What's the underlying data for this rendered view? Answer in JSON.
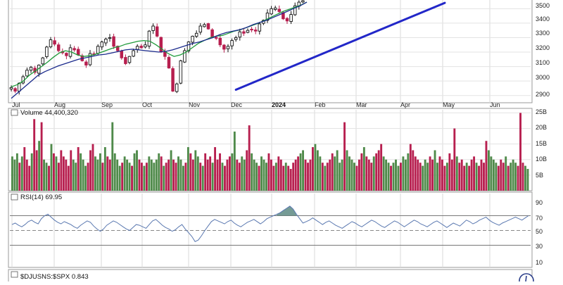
{
  "chart_data": [
    {
      "type": "candlestick",
      "panel": "price",
      "grid": true,
      "x_tick_labels": [
        "Jul",
        "Aug",
        "Sep",
        "Oct",
        "Nov",
        "Dec",
        "2024",
        "Feb",
        "Mar",
        "Apr",
        "May",
        "Jun"
      ],
      "year_label": "2024",
      "ylim": [
        2850,
        3560
      ],
      "y_ticks": [
        2900,
        3000,
        3100,
        3200,
        3300,
        3400,
        3500
      ],
      "candles_per_month": 21,
      "close": [
        2955,
        2930,
        2985,
        3030,
        3075,
        3095,
        3060,
        3110,
        3160,
        3235,
        3285,
        3255,
        3210,
        3195,
        3175,
        3230,
        3215,
        3180,
        3140,
        3110,
        3190,
        3185,
        3240,
        3270,
        3290,
        3300,
        3240,
        3210,
        3160,
        3120,
        3170,
        3210,
        3240,
        3230,
        3250,
        3345,
        3380,
        3310,
        3200,
        3170,
        3090,
        2930,
        2980,
        3140,
        3210,
        3270,
        3310,
        3330,
        3380,
        3390,
        3360,
        3300,
        3295,
        3250,
        3220,
        3240,
        3280,
        3300,
        3340,
        3330,
        3350,
        3355,
        3345,
        3395,
        3420,
        3470,
        3500,
        3505,
        3480,
        3430,
        3415,
        3460,
        3520,
        3545,
        3555
      ],
      "moving_averages": [
        {
          "name": "fast",
          "color": "#1f9a3a",
          "values": [
            2960,
            2975,
            3000,
            3040,
            3070,
            3100,
            3130,
            3165,
            3195,
            3210,
            3200,
            3180,
            3170,
            3175,
            3185,
            3200,
            3215,
            3230,
            3240,
            3255,
            3265,
            3275,
            3280,
            3275,
            3250,
            3220,
            3190,
            3170,
            3180,
            3200,
            3230,
            3260,
            3280,
            3300,
            3310,
            3315,
            3330,
            3345,
            3355,
            3370,
            3385,
            3400,
            3420,
            3440,
            3460,
            3480,
            3495,
            3510,
            3525,
            3545
          ]
        },
        {
          "name": "slow",
          "color": "#1a2a8c",
          "values": [
            2880,
            2920,
            2960,
            3000,
            3040,
            3065,
            3085,
            3105,
            3120,
            3135,
            3150,
            3160,
            3170,
            3180,
            3185,
            3195,
            3205,
            3215,
            3220,
            3215,
            3210,
            3205,
            3200,
            3205,
            3215,
            3230,
            3245,
            3260,
            3270,
            3285,
            3300,
            3320,
            3335,
            3345,
            3355,
            3370,
            3390,
            3405,
            3420,
            3440,
            3460,
            3480,
            3500,
            3520,
            3545
          ]
        }
      ],
      "trendline": {
        "color": "#2227c8",
        "start_index": 57,
        "start_value": 2940,
        "end_index": 110,
        "end_value": 3540
      }
    },
    {
      "type": "bar",
      "panel": "volume",
      "label": "Volume 44,400,320",
      "y_ticks": [
        "5B",
        "10B",
        "15B",
        "20B",
        "25B"
      ],
      "y_tick_values": [
        5,
        10,
        15,
        20,
        25
      ],
      "ylim": [
        0,
        26
      ],
      "values": [
        11,
        10,
        12,
        9,
        11,
        14,
        10,
        8,
        12,
        23,
        13,
        16,
        22,
        10,
        9,
        8,
        15,
        12,
        11,
        9,
        13,
        11,
        10,
        8,
        13,
        10,
        9,
        14,
        12,
        10,
        8,
        9,
        13,
        15,
        11,
        10,
        12,
        9,
        14,
        11,
        10,
        22,
        12,
        10,
        8,
        9,
        11,
        10,
        9,
        8,
        12,
        13,
        10,
        9,
        8,
        9,
        11,
        10,
        9,
        10,
        12,
        11,
        8,
        9,
        10,
        13,
        10,
        9,
        11,
        10,
        8,
        9,
        14,
        12,
        10,
        13,
        11,
        9,
        8,
        12,
        10,
        11,
        9,
        14,
        10,
        12,
        9,
        8,
        10,
        11,
        12,
        19,
        10,
        9,
        11,
        10,
        13,
        21,
        12,
        10,
        9,
        8,
        11,
        10,
        9,
        12,
        10,
        8,
        9,
        11,
        10,
        8,
        9,
        8,
        7,
        9,
        10,
        11,
        12,
        13,
        10,
        9,
        10,
        14,
        15,
        13,
        11,
        9,
        8,
        9,
        10,
        12,
        11,
        13,
        9,
        10,
        22,
        13,
        11,
        10,
        9,
        8,
        10,
        12,
        14,
        11,
        10,
        9,
        11,
        12,
        13,
        15,
        11,
        10,
        9,
        8,
        9,
        10,
        8,
        9,
        11,
        10,
        12,
        15,
        13,
        11,
        10,
        9,
        8,
        10,
        9,
        11,
        10,
        13,
        9,
        11,
        10,
        8,
        9,
        12,
        10,
        20,
        11,
        9,
        10,
        8,
        9,
        8,
        10,
        11,
        9,
        8,
        10,
        9,
        16,
        13,
        11,
        10,
        9,
        8,
        10,
        9,
        11,
        8,
        9,
        10,
        9,
        8,
        25,
        9,
        8,
        7
      ]
    },
    {
      "type": "line",
      "panel": "rsi",
      "label": "RSI(14) 69.95",
      "y_ticks": [
        10,
        30,
        50,
        70,
        90
      ],
      "ylim": [
        0,
        100
      ],
      "reference_lines": [
        70,
        50,
        30
      ],
      "overbought_fill_color": "#5d8a83",
      "values": [
        58,
        60,
        57,
        55,
        58,
        62,
        64,
        61,
        59,
        66,
        70,
        72,
        68,
        64,
        61,
        59,
        62,
        60,
        58,
        55,
        53,
        57,
        60,
        63,
        61,
        56,
        52,
        49,
        52,
        57,
        60,
        63,
        61,
        58,
        55,
        52,
        50,
        54,
        58,
        57,
        55,
        53,
        58,
        63,
        65,
        61,
        57,
        54,
        52,
        49,
        51,
        55,
        58,
        52,
        47,
        42,
        35,
        37,
        43,
        50,
        56,
        62,
        65,
        63,
        61,
        59,
        62,
        64,
        60,
        57,
        55,
        58,
        61,
        63,
        65,
        62,
        59,
        62,
        66,
        68,
        70,
        72,
        74,
        77,
        80,
        83,
        79,
        72,
        66,
        60,
        62,
        64,
        67,
        64,
        61,
        58,
        61,
        63,
        60,
        57,
        55,
        53,
        56,
        59,
        62,
        60,
        57,
        55,
        58,
        61,
        64,
        62,
        59,
        56,
        54,
        57,
        60,
        63,
        61,
        58,
        55,
        58,
        61,
        64,
        62,
        59,
        57,
        55,
        58,
        61,
        63,
        60,
        57,
        54,
        57,
        60,
        58,
        56,
        60,
        64,
        62,
        59,
        61,
        64,
        66,
        68,
        64,
        61,
        59,
        57,
        60,
        62,
        64,
        66,
        68,
        66,
        64,
        67,
        70
      ]
    },
    {
      "type": "line",
      "panel": "ratio",
      "label": "$DJUSNS:$SPX 0.843"
    }
  ],
  "colors": {
    "up": "#4f8a4a",
    "down": "#b71f4f",
    "panel_border": "#9a9a9a",
    "rsi_line": "#5a78b0"
  }
}
